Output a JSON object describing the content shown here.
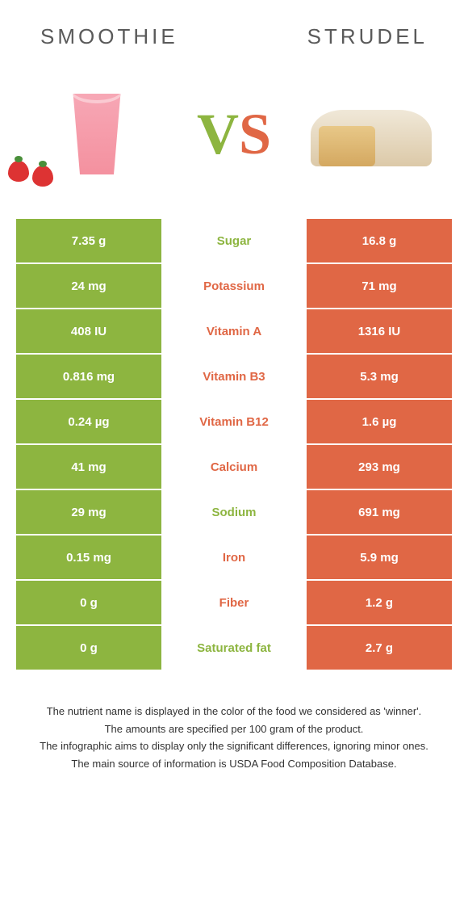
{
  "colors": {
    "left": "#8db540",
    "right": "#e06745",
    "background": "#ffffff",
    "text": "#333333"
  },
  "header": {
    "left_title": "SMOOTHIE",
    "right_title": "STRUDEL",
    "vs_v": "V",
    "vs_s": "S"
  },
  "rows": [
    {
      "label": "Sugar",
      "left": "7.35 g",
      "right": "16.8 g",
      "winner": "left"
    },
    {
      "label": "Potassium",
      "left": "24 mg",
      "right": "71 mg",
      "winner": "right"
    },
    {
      "label": "Vitamin A",
      "left": "408 IU",
      "right": "1316 IU",
      "winner": "right"
    },
    {
      "label": "Vitamin B3",
      "left": "0.816 mg",
      "right": "5.3 mg",
      "winner": "right"
    },
    {
      "label": "Vitamin B12",
      "left": "0.24 µg",
      "right": "1.6 µg",
      "winner": "right"
    },
    {
      "label": "Calcium",
      "left": "41 mg",
      "right": "293 mg",
      "winner": "right"
    },
    {
      "label": "Sodium",
      "left": "29 mg",
      "right": "691 mg",
      "winner": "left"
    },
    {
      "label": "Iron",
      "left": "0.15 mg",
      "right": "5.9 mg",
      "winner": "right"
    },
    {
      "label": "Fiber",
      "left": "0 g",
      "right": "1.2 g",
      "winner": "right"
    },
    {
      "label": "Saturated fat",
      "left": "0 g",
      "right": "2.7 g",
      "winner": "left"
    }
  ],
  "footnotes": [
    "The nutrient name is displayed in the color of the food we considered as 'winner'.",
    "The amounts are specified per 100 gram of the product.",
    "The infographic aims to display only the significant differences, ignoring minor ones.",
    "The main source of information is USDA Food Composition Database."
  ]
}
